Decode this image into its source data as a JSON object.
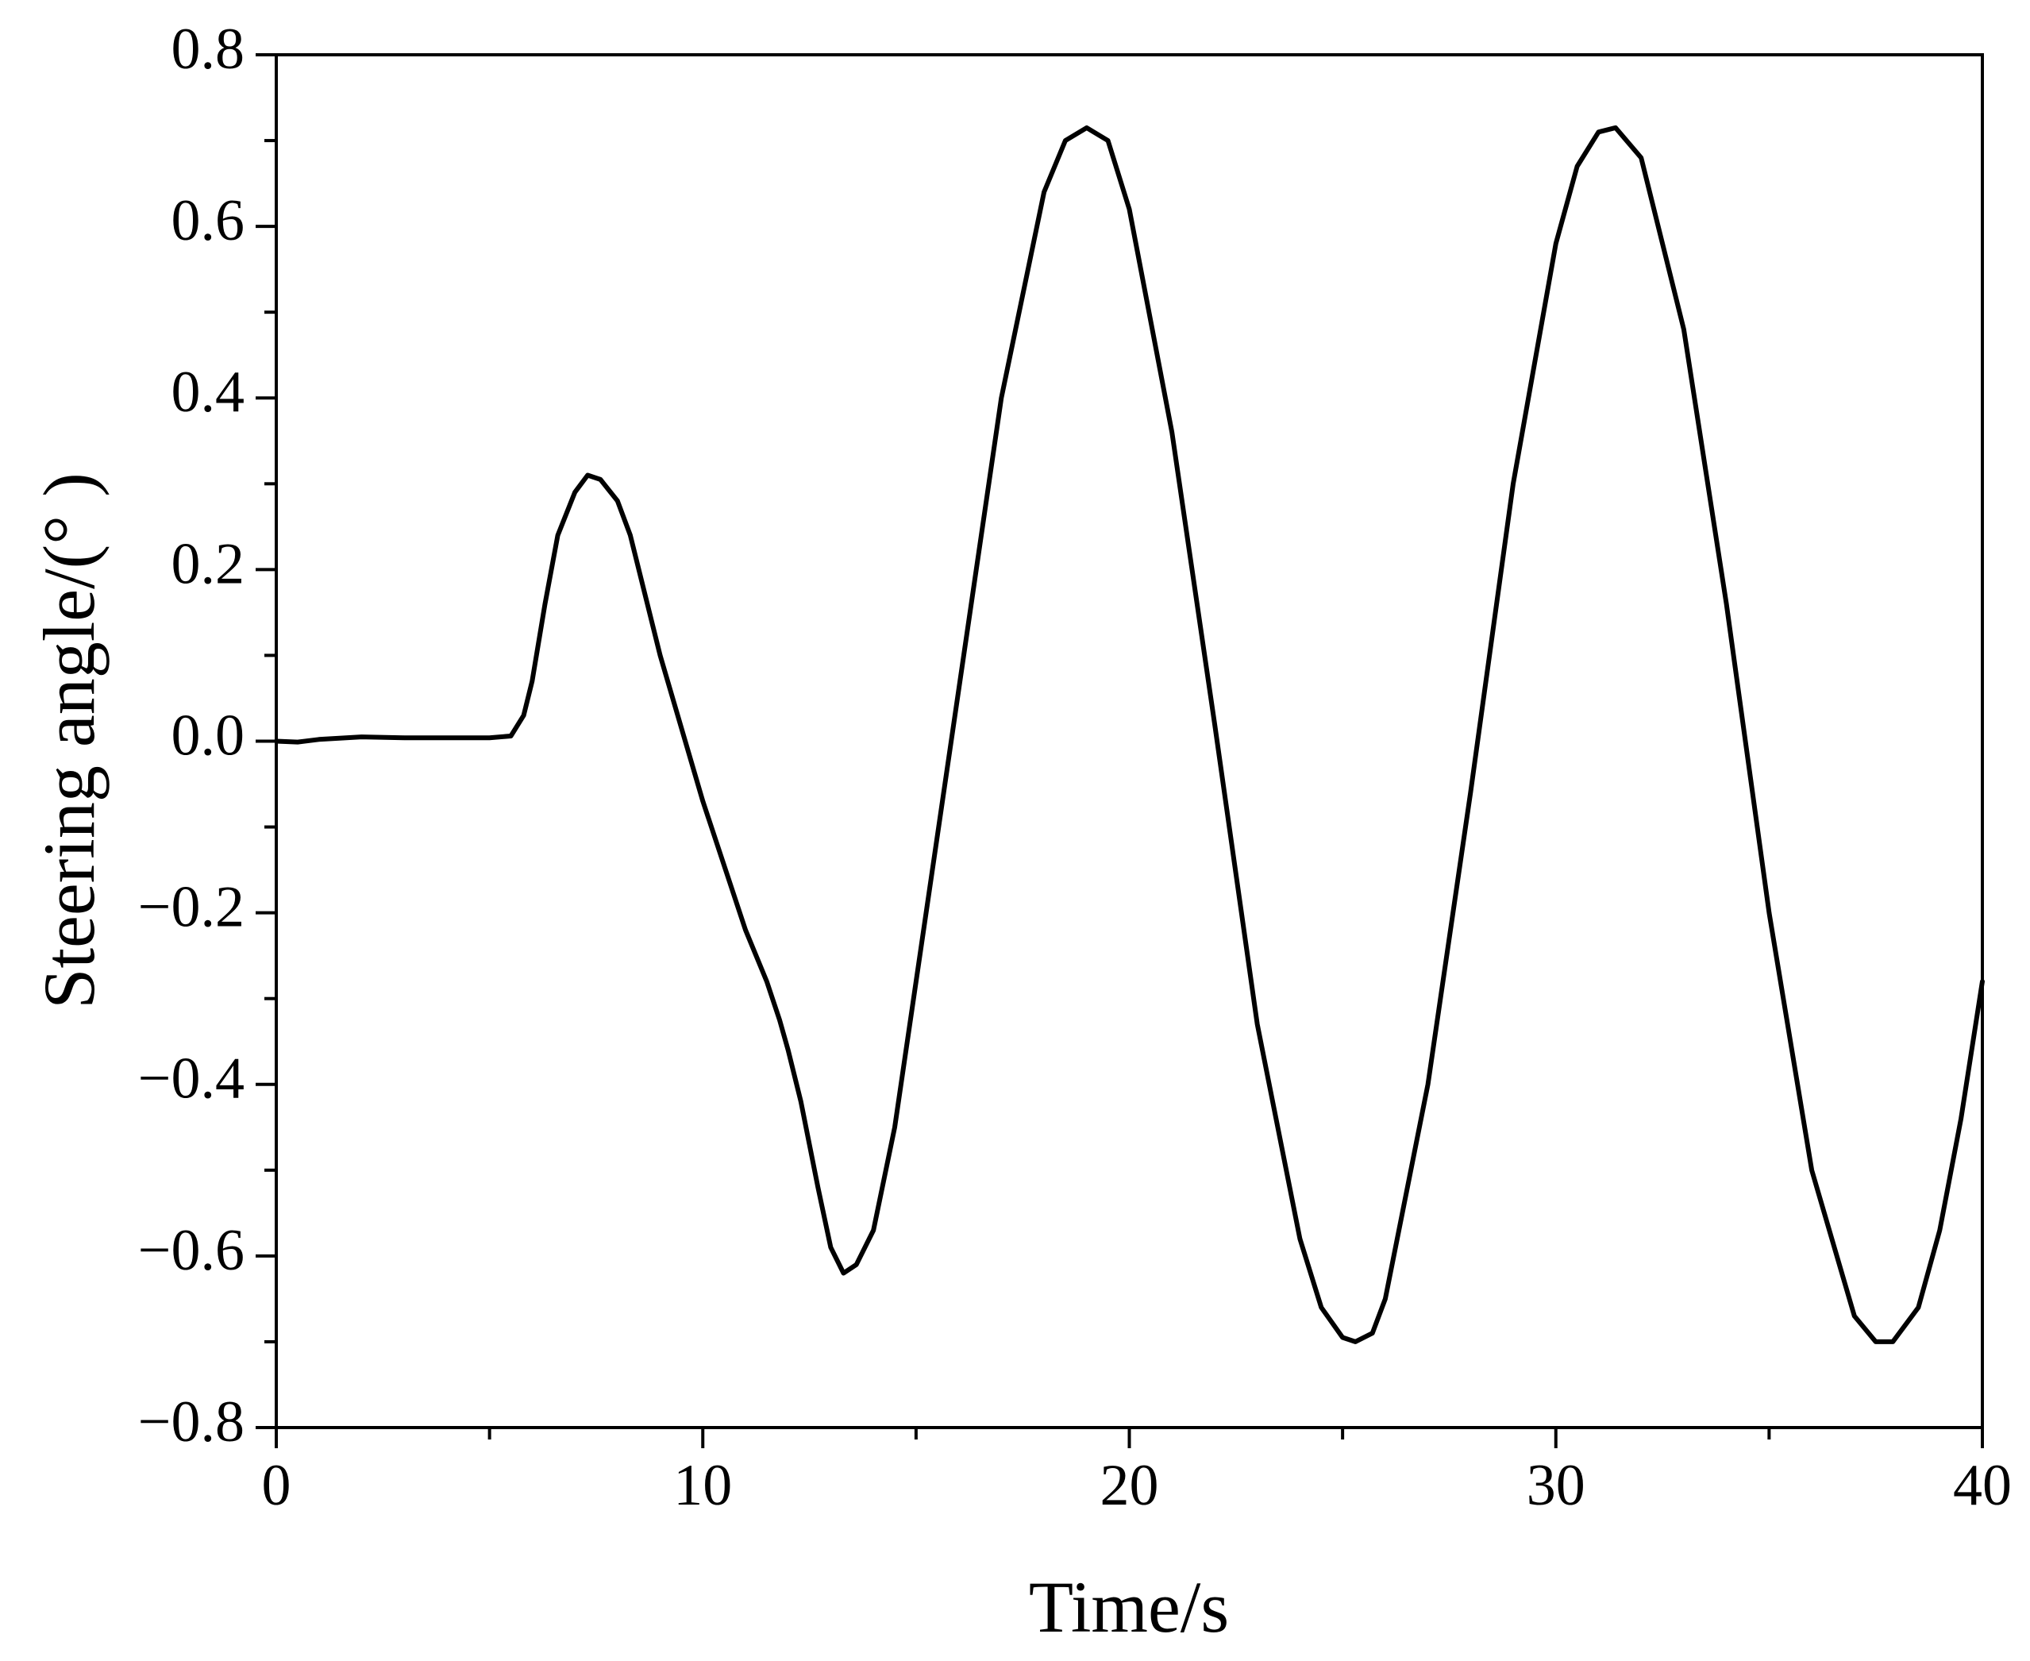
{
  "chart_data": {
    "type": "line",
    "xlabel": "Time/s",
    "ylabel": "Steering angle/(°  )",
    "color": "#000000",
    "x": [
      0,
      0.5,
      1,
      2,
      3,
      4,
      5,
      5.5,
      5.8,
      6,
      6.3,
      6.6,
      7,
      7.3,
      7.6,
      8,
      8.3,
      9,
      10,
      11,
      11.5,
      11.8,
      12,
      12.3,
      12.7,
      13,
      13.3,
      13.6,
      14,
      14.5,
      15,
      16,
      17,
      18,
      18.5,
      19,
      19.5,
      20,
      21,
      22,
      23,
      24,
      24.5,
      25,
      25.3,
      25.7,
      26,
      27,
      28,
      29,
      30,
      30.5,
      31,
      31.4,
      32,
      33,
      34,
      35,
      36,
      37,
      37.5,
      37.9,
      38.5,
      39,
      39.5,
      40
    ],
    "values": [
      0,
      -0.001,
      0.002,
      0.005,
      0.004,
      0.004,
      0.004,
      0.006,
      0.03,
      0.07,
      0.16,
      0.24,
      0.29,
      0.31,
      0.305,
      0.28,
      0.24,
      0.1,
      -0.07,
      -0.22,
      -0.28,
      -0.325,
      -0.36,
      -0.42,
      -0.52,
      -0.59,
      -0.62,
      -0.61,
      -0.57,
      -0.45,
      -0.28,
      0.06,
      0.4,
      0.64,
      0.7,
      0.715,
      0.7,
      0.62,
      0.36,
      0.02,
      -0.33,
      -0.58,
      -0.66,
      -0.695,
      -0.7,
      -0.69,
      -0.65,
      -0.4,
      -0.06,
      0.3,
      0.58,
      0.67,
      0.71,
      0.715,
      0.68,
      0.48,
      0.16,
      -0.2,
      -0.5,
      -0.67,
      -0.7,
      -0.7,
      -0.66,
      -0.57,
      -0.44,
      -0.28
    ],
    "xlim": [
      0,
      40
    ],
    "xticks": [
      0,
      10,
      20,
      30,
      40
    ],
    "xminorticks": [
      5,
      15,
      25,
      35
    ],
    "ylim": [
      -0.8,
      0.8
    ],
    "yticks": [
      {
        "value": -0.8,
        "label": "−0.8"
      },
      {
        "value": -0.6,
        "label": "−0.6"
      },
      {
        "value": -0.4,
        "label": "−0.4"
      },
      {
        "value": -0.2,
        "label": "−0.2"
      },
      {
        "value": 0,
        "label": "0.0"
      },
      0.2,
      0.4,
      0.6,
      0.8
    ],
    "yminorticks": [
      -0.7,
      -0.5,
      -0.3,
      -0.1,
      0.1,
      0.3,
      0.5,
      0.7
    ]
  }
}
